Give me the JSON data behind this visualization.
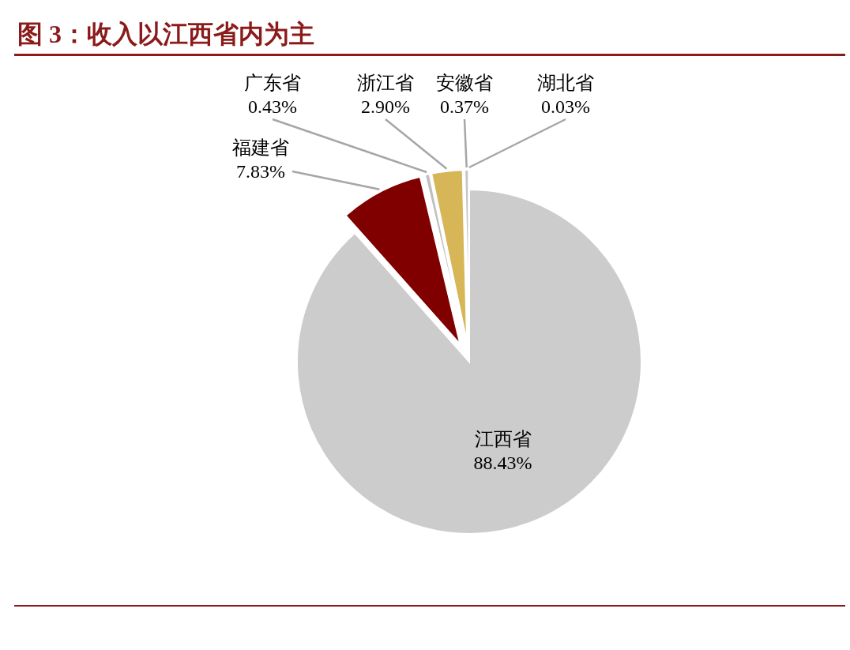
{
  "chart_data": {
    "type": "pie",
    "title": "图 3：收入以江西省内为主",
    "categories": [
      "江西省",
      "福建省",
      "广东省",
      "浙江省",
      "安徽省",
      "湖北省"
    ],
    "values": [
      88.43,
      7.83,
      0.43,
      2.9,
      0.37,
      0.03
    ],
    "value_labels": [
      "88.43%",
      "7.83%",
      "0.43%",
      "2.90%",
      "0.37%",
      "0.03%"
    ],
    "colors": [
      "#cccccc",
      "#800000",
      "#bfbfbf",
      "#d6b656",
      "#c4c4c4",
      "#a6a6a6"
    ]
  }
}
